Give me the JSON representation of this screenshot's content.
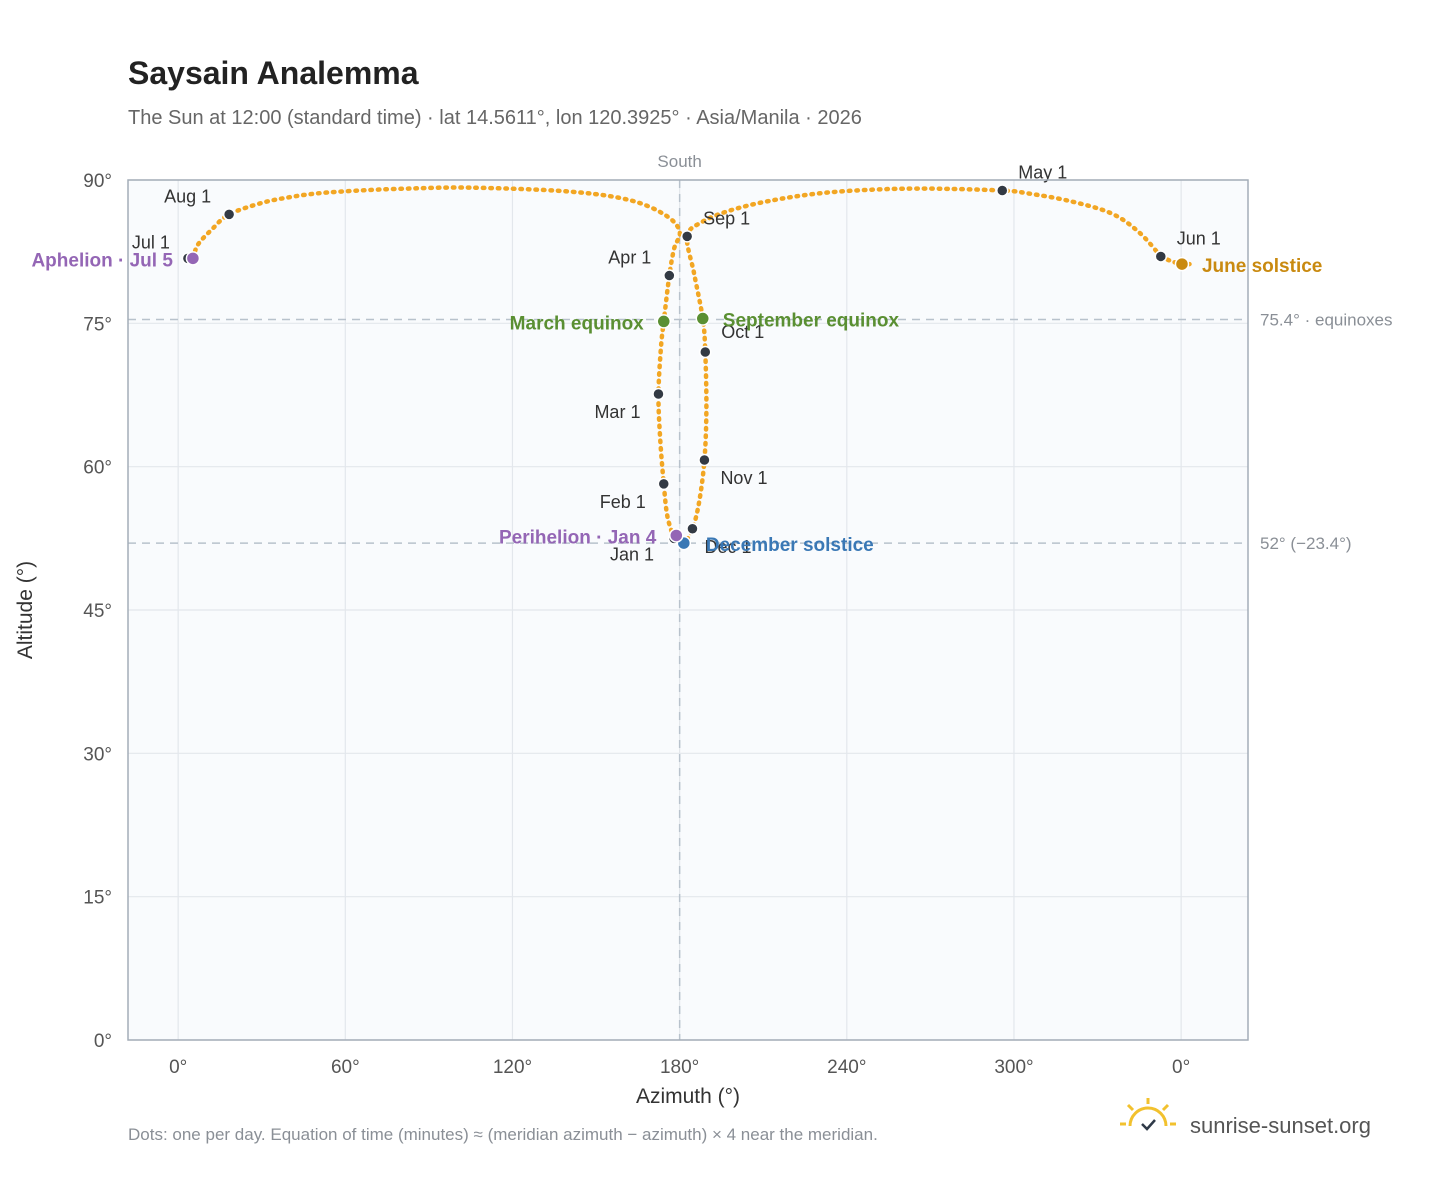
{
  "header": {
    "title": "Saysain Analemma",
    "subtitle": "The Sun at 12:00 (standard time) · lat 14.5611°, lon 120.3925° · Asia/Manila · 2026"
  },
  "footer": {
    "note": "Dots: one per day. Equation of time (minutes) ≈ (meridian azimuth − azimuth) × 4 near the meridian.",
    "brand": "sunrise-sunset.org",
    "brand_icon": "sunrise-check-icon"
  },
  "colors": {
    "curve": "#f2a623",
    "month_marker": "#333a44",
    "equinox": "#5a8f32",
    "june_solstice": "#c98a10",
    "december_solstice": "#3a78b5",
    "apsis": "#9466b5",
    "plot_bg": "#f9fbfd",
    "grid": "#e3e7ec",
    "ref_line": "#b8c2cc"
  },
  "chart_data": {
    "type": "scatter",
    "title": "Saysain Analemma",
    "xlabel": "Azimuth (°)",
    "ylabel": "Altitude (°)",
    "x_ticks": [
      "0°",
      "60°",
      "120°",
      "180°",
      "240°",
      "300°",
      "0°"
    ],
    "y_ticks": [
      "0°",
      "15°",
      "30°",
      "45°",
      "60°",
      "75°",
      "90°"
    ],
    "xlim": [
      -18,
      384
    ],
    "ylim": [
      0,
      90
    ],
    "grid": true,
    "meridian": {
      "azimuth": 180,
      "label": "South"
    },
    "reference_lines": [
      {
        "altitude": 75.4,
        "label": "75.4° · equinoxes"
      },
      {
        "altitude": 52,
        "label": "52° (−23.4°)"
      }
    ],
    "month_markers": [
      {
        "label": "Jan 1",
        "az": 178.0,
        "alt": 52.5
      },
      {
        "label": "Feb 1",
        "az": 174.3,
        "alt": 58.2
      },
      {
        "label": "Mar 1",
        "az": 172.4,
        "alt": 67.6
      },
      {
        "label": "Apr 1",
        "az": 176.3,
        "alt": 80.0
      },
      {
        "label": "May 1",
        "az": 295.8,
        "alt": 88.9
      },
      {
        "label": "Jun 1",
        "az": 352.7,
        "alt": 82.0
      },
      {
        "label": "Jul 1",
        "az": 3.5,
        "alt": 81.8
      },
      {
        "label": "Aug 1",
        "az": 18.3,
        "alt": 86.4
      },
      {
        "label": "Sep 1",
        "az": 182.7,
        "alt": 84.1
      },
      {
        "label": "Oct 1",
        "az": 189.2,
        "alt": 72.0
      },
      {
        "label": "Nov 1",
        "az": 188.9,
        "alt": 60.7
      },
      {
        "label": "Dec 1",
        "az": 184.6,
        "alt": 53.5
      }
    ],
    "events": [
      {
        "label": "March equinox",
        "az": 174.3,
        "alt": 75.2,
        "kind": "equinox"
      },
      {
        "label": "September equinox",
        "az": 188.3,
        "alt": 75.5,
        "kind": "equinox"
      },
      {
        "label": "June solstice",
        "az": 360.3,
        "alt": 81.2,
        "kind": "june_solstice"
      },
      {
        "label": "December solstice",
        "az": 181.5,
        "alt": 52.0,
        "kind": "december_solstice"
      },
      {
        "label": "Perihelion · Jan 4",
        "az": 178.8,
        "alt": 52.8,
        "kind": "apsis"
      },
      {
        "label": "Aphelion · Jul 5",
        "az": 5.3,
        "alt": 81.8,
        "kind": "apsis"
      }
    ],
    "analemma_path": [
      {
        "az": 178.0,
        "alt": 52.5
      },
      {
        "az": 175.6,
        "alt": 54.8
      },
      {
        "az": 174.3,
        "alt": 58.2
      },
      {
        "az": 173.0,
        "alt": 63.0
      },
      {
        "az": 172.4,
        "alt": 67.6
      },
      {
        "az": 173.3,
        "alt": 72.5
      },
      {
        "az": 174.3,
        "alt": 75.2
      },
      {
        "az": 176.3,
        "alt": 80.0
      },
      {
        "az": 178.0,
        "alt": 82.8
      },
      {
        "az": 180.0,
        "alt": 84.6
      },
      {
        "az": 175.0,
        "alt": 86.3
      },
      {
        "az": 162.0,
        "alt": 87.9
      },
      {
        "az": 140.0,
        "alt": 88.8
      },
      {
        "az": 105.0,
        "alt": 89.2
      },
      {
        "az": 82.0,
        "alt": 89.1
      },
      {
        "az": 65.0,
        "alt": 88.9
      },
      {
        "az": 50.0,
        "alt": 88.6
      },
      {
        "az": 40.0,
        "alt": 88.2
      },
      {
        "az": 30.0,
        "alt": 87.6
      },
      {
        "az": 18.3,
        "alt": 86.4
      },
      {
        "az": 12.0,
        "alt": 84.8
      },
      {
        "az": 7.0,
        "alt": 83.2
      },
      {
        "az": 5.3,
        "alt": 81.8
      },
      {
        "az": 3.5,
        "alt": 81.8
      }
    ],
    "analemma_path_b": [
      {
        "az": 352.7,
        "alt": 82.0
      },
      {
        "az": 345.0,
        "alt": 84.5
      },
      {
        "az": 335.0,
        "alt": 86.5
      },
      {
        "az": 320.0,
        "alt": 87.8
      },
      {
        "az": 305.0,
        "alt": 88.6
      },
      {
        "az": 295.8,
        "alt": 88.9
      },
      {
        "az": 270.0,
        "alt": 89.1
      },
      {
        "az": 250.0,
        "alt": 89.0
      },
      {
        "az": 230.0,
        "alt": 88.6
      },
      {
        "az": 212.0,
        "alt": 87.8
      },
      {
        "az": 198.0,
        "alt": 86.8
      },
      {
        "az": 188.0,
        "alt": 85.6
      },
      {
        "az": 182.7,
        "alt": 84.1
      },
      {
        "az": 185.2,
        "alt": 80.2
      },
      {
        "az": 188.3,
        "alt": 75.5
      },
      {
        "az": 189.2,
        "alt": 72.0
      },
      {
        "az": 189.6,
        "alt": 66.0
      },
      {
        "az": 188.9,
        "alt": 60.7
      },
      {
        "az": 187.0,
        "alt": 56.3
      },
      {
        "az": 184.6,
        "alt": 53.5
      },
      {
        "az": 181.5,
        "alt": 52.0
      },
      {
        "az": 179.0,
        "alt": 52.2
      },
      {
        "az": 178.0,
        "alt": 52.5
      }
    ],
    "analemma_path_c": [
      {
        "az": 352.7,
        "alt": 82.0
      },
      {
        "az": 356.5,
        "alt": 81.5
      },
      {
        "az": 360.3,
        "alt": 81.2
      },
      {
        "az": 363.0,
        "alt": 81.2
      }
    ]
  }
}
